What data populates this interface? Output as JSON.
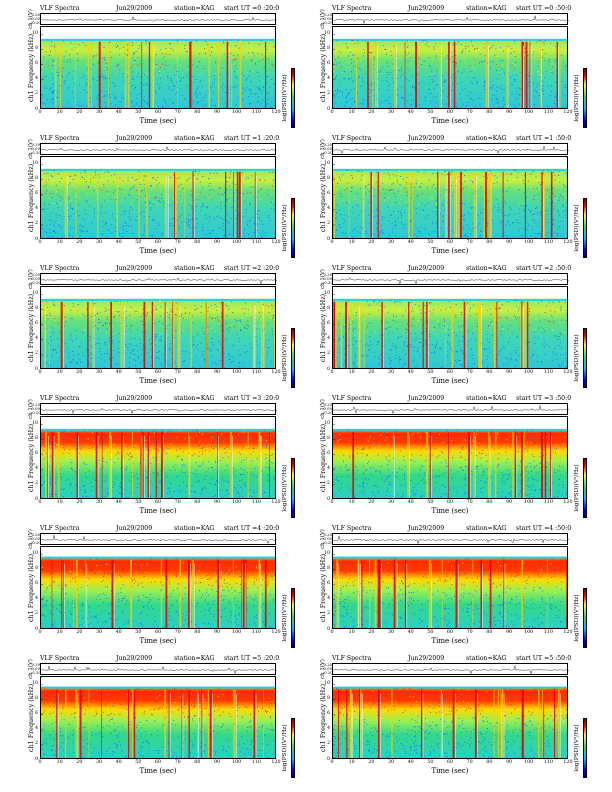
{
  "chart_data": [
    {
      "type": "heatmap",
      "title": "VLF Spectra",
      "date": "Jun29/2009",
      "station": "station=KAG",
      "start": "start  UT =0 :20:0",
      "channel_label": "ch 1(V)",
      "ylabel": "ch1 Frequency (kHz)",
      "xlabel": "Time (sec)",
      "colorbar_label": "log(PSD)(V²/Hz)",
      "x_ticks": [
        "0",
        "10",
        "20",
        "30",
        "40",
        "50",
        "60",
        "70",
        "80",
        "90",
        "100",
        "110",
        "120"
      ],
      "y_ticks": [
        "0",
        "2",
        "4",
        "6",
        "8",
        "10"
      ],
      "wave_ticks": [
        "0.20",
        "0.00",
        "-0.20"
      ],
      "xlim": [
        0,
        120
      ],
      "ylim": [
        0,
        11
      ],
      "band_top_khz": 9.3,
      "red_fraction": 0.25,
      "dense_top": false,
      "seed": 11
    },
    {
      "type": "heatmap",
      "title": "VLF Spectra",
      "date": "Jun29/2009",
      "station": "station=KAG",
      "start": "start  UT =0 :50:0",
      "channel_label": "ch 1(V)",
      "ylabel": "ch1 Frequency (kHz)",
      "xlabel": "Time (sec)",
      "colorbar_label": "log(PSD)(V²/Hz)",
      "x_ticks": [
        "0",
        "10",
        "20",
        "30",
        "40",
        "50",
        "60",
        "70",
        "80",
        "90",
        "100",
        "110",
        "120"
      ],
      "y_ticks": [
        "0",
        "2",
        "4",
        "6",
        "8",
        "10"
      ],
      "wave_ticks": [
        "0.20",
        "0.00",
        "-0.20"
      ],
      "xlim": [
        0,
        120
      ],
      "ylim": [
        0,
        11
      ],
      "band_top_khz": 9.3,
      "red_fraction": 0.25,
      "dense_top": false,
      "seed": 23
    },
    {
      "type": "heatmap",
      "title": "VLF Spectra",
      "date": "Jun29/2009",
      "station": "station=KAG",
      "start": "start  UT =1 :20:0",
      "channel_label": "ch 1(V)",
      "ylabel": "ch1 Frequency (kHz)",
      "xlabel": "Time (sec)",
      "colorbar_label": "log(PSD)(V²/Hz)",
      "x_ticks": [
        "0",
        "10",
        "20",
        "30",
        "40",
        "50",
        "60",
        "70",
        "80",
        "90",
        "100",
        "110",
        "120"
      ],
      "y_ticks": [
        "0",
        "2",
        "4",
        "6",
        "8",
        "10"
      ],
      "wave_ticks": [
        "0.20",
        "0.00",
        "-0.20"
      ],
      "xlim": [
        0,
        120
      ],
      "ylim": [
        0,
        11
      ],
      "band_top_khz": 9.3,
      "red_fraction": 0.2,
      "dense_top": false,
      "seed": 37
    },
    {
      "type": "heatmap",
      "title": "VLF Spectra",
      "date": "Jun29/2009",
      "station": "station=KAG",
      "start": "start  UT =1 :50:0",
      "channel_label": "ch 1(V)",
      "ylabel": "ch1 Frequency (kHz)",
      "xlabel": "Time (sec)",
      "colorbar_label": "log(PSD)(V²/Hz)",
      "x_ticks": [
        "0",
        "10",
        "20",
        "30",
        "40",
        "50",
        "60",
        "70",
        "80",
        "90",
        "100",
        "110",
        "120"
      ],
      "y_ticks": [
        "0",
        "2",
        "4",
        "6",
        "8",
        "10"
      ],
      "wave_ticks": [
        "0.20",
        "0.00",
        "-0.20"
      ],
      "xlim": [
        0,
        120
      ],
      "ylim": [
        0,
        11
      ],
      "band_top_khz": 9.3,
      "red_fraction": 0.2,
      "dense_top": false,
      "seed": 41
    },
    {
      "type": "heatmap",
      "title": "VLF Spectra",
      "date": "Jun29/2009",
      "station": "station=KAG",
      "start": "start  UT =2 :20:0",
      "channel_label": "ch 1(V)",
      "ylabel": "ch1 Frequency (kHz)",
      "xlabel": "Time (sec)",
      "colorbar_label": "log(PSD)(V²/Hz)",
      "x_ticks": [
        "0",
        "10",
        "20",
        "30",
        "40",
        "50",
        "60",
        "70",
        "80",
        "90",
        "100",
        "110",
        "120"
      ],
      "y_ticks": [
        "0",
        "2",
        "4",
        "6",
        "8",
        "10"
      ],
      "wave_ticks": [
        "0.20",
        "0.00",
        "-0.20"
      ],
      "xlim": [
        0,
        120
      ],
      "ylim": [
        0,
        11
      ],
      "band_top_khz": 9.3,
      "red_fraction": 0.2,
      "dense_top": false,
      "seed": 53
    },
    {
      "type": "heatmap",
      "title": "VLF Spectra",
      "date": "Jun29/2009",
      "station": "station=KAG",
      "start": "start  UT =2 :50:0",
      "channel_label": "ch 1(V)",
      "ylabel": "ch1 Frequency (kHz)",
      "xlabel": "Time (sec)",
      "colorbar_label": "log(PSD)(V²/Hz)",
      "x_ticks": [
        "0",
        "10",
        "20",
        "30",
        "40",
        "50",
        "60",
        "70",
        "80",
        "90",
        "100",
        "110",
        "120"
      ],
      "y_ticks": [
        "0",
        "2",
        "4",
        "6",
        "8",
        "10"
      ],
      "wave_ticks": [
        "0.20",
        "0.00",
        "-0.20"
      ],
      "xlim": [
        0,
        120
      ],
      "ylim": [
        0,
        11
      ],
      "band_top_khz": 9.3,
      "red_fraction": 0.2,
      "dense_top": false,
      "seed": 67
    },
    {
      "type": "heatmap",
      "title": "VLF Spectra",
      "date": "Jun29/2009",
      "station": "station=KAG",
      "start": "start  UT =3 :20:0",
      "channel_label": "ch 1(V)",
      "ylabel": "ch1 Frequency (kHz)",
      "xlabel": "Time (sec)",
      "colorbar_label": "log(PSD)(V²/Hz)",
      "x_ticks": [
        "0",
        "10",
        "20",
        "30",
        "40",
        "50",
        "60",
        "70",
        "80",
        "90",
        "100",
        "110",
        "120"
      ],
      "y_ticks": [
        "0",
        "2",
        "4",
        "6",
        "8",
        "10"
      ],
      "wave_ticks": [
        "0.20",
        "0.00",
        "-0.20"
      ],
      "xlim": [
        0,
        120
      ],
      "ylim": [
        0,
        11
      ],
      "band_top_khz": 9.3,
      "red_fraction": 0.35,
      "dense_top": true,
      "seed": 71
    },
    {
      "type": "heatmap",
      "title": "VLF Spectra",
      "date": "Jun29/2009",
      "station": "station=KAG",
      "start": "start  UT =3 :50:0",
      "channel_label": "ch 1(V)",
      "ylabel": "ch1 Frequency (kHz)",
      "xlabel": "Time (sec)",
      "colorbar_label": "log(PSD)(V²/Hz)",
      "x_ticks": [
        "0",
        "10",
        "20",
        "30",
        "40",
        "50",
        "60",
        "70",
        "80",
        "90",
        "100",
        "110",
        "120"
      ],
      "y_ticks": [
        "0",
        "2",
        "4",
        "6",
        "8",
        "10"
      ],
      "wave_ticks": [
        "0.20",
        "0.00",
        "-0.20"
      ],
      "xlim": [
        0,
        120
      ],
      "ylim": [
        0,
        11
      ],
      "band_top_khz": 9.3,
      "red_fraction": 0.4,
      "dense_top": true,
      "seed": 83
    },
    {
      "type": "heatmap",
      "title": "VLF Spectra",
      "date": "Jun29/2009",
      "station": "station=KAG",
      "start": "start  UT =4 :20:0",
      "channel_label": "ch 1(V)",
      "ylabel": "ch1 Frequency (kHz)",
      "xlabel": "Time (sec)",
      "colorbar_label": "log(PSD)(V²/Hz)",
      "x_ticks": [
        "0",
        "10",
        "20",
        "30",
        "40",
        "50",
        "60",
        "70",
        "80",
        "90",
        "100",
        "110",
        "120"
      ],
      "y_ticks": [
        "0",
        "2",
        "4",
        "6",
        "8",
        "10"
      ],
      "wave_ticks": [
        "0.20",
        "0.00",
        "-0.20"
      ],
      "xlim": [
        0,
        120
      ],
      "ylim": [
        0,
        11
      ],
      "band_top_khz": 9.6,
      "red_fraction": 0.55,
      "dense_top": true,
      "seed": 97
    },
    {
      "type": "heatmap",
      "title": "VLF Spectra",
      "date": "Jun29/2009",
      "station": "station=KAG",
      "start": "start  UT =4 :50:0",
      "channel_label": "ch 1(V)",
      "ylabel": "ch1 Frequency (kHz)",
      "xlabel": "Time (sec)",
      "colorbar_label": "log(PSD)(V²/Hz)",
      "x_ticks": [
        "0",
        "10",
        "20",
        "30",
        "40",
        "50",
        "60",
        "70",
        "80",
        "90",
        "100",
        "110",
        "120"
      ],
      "y_ticks": [
        "0",
        "2",
        "4",
        "6",
        "8",
        "10"
      ],
      "wave_ticks": [
        "0.20",
        "0.00",
        "-0.20"
      ],
      "xlim": [
        0,
        120
      ],
      "ylim": [
        0,
        11
      ],
      "band_top_khz": 9.6,
      "red_fraction": 0.65,
      "dense_top": true,
      "seed": 101
    },
    {
      "type": "heatmap",
      "title": "VLF Spectra",
      "date": "Jun29/2009",
      "station": "station=KAG",
      "start": "start  UT =5 :20:0",
      "channel_label": "ch 1(V)",
      "ylabel": "ch1 Frequency (kHz)",
      "xlabel": "Time (sec)",
      "colorbar_label": "log(PSD)(V²/Hz)",
      "x_ticks": [
        "0",
        "10",
        "20",
        "30",
        "40",
        "50",
        "60",
        "70",
        "80",
        "90",
        "100",
        "110",
        "120"
      ],
      "y_ticks": [
        "0",
        "2",
        "4",
        "6",
        "8",
        "10"
      ],
      "wave_ticks": [
        "0.20",
        "0.00",
        "-0.20"
      ],
      "xlim": [
        0,
        120
      ],
      "ylim": [
        0,
        11
      ],
      "band_top_khz": 9.6,
      "red_fraction": 0.7,
      "dense_top": true,
      "seed": 113
    },
    {
      "type": "heatmap",
      "title": "VLF Spectra",
      "date": "Jun29/2009",
      "station": "station=KAG",
      "start": "start  UT =5 :50:0",
      "channel_label": "ch 1(V)",
      "ylabel": "ch1 Frequency (kHz)",
      "xlabel": "Time (sec)",
      "colorbar_label": "log(PSD)(V²/Hz)",
      "x_ticks": [
        "0",
        "10",
        "20",
        "30",
        "40",
        "50",
        "60",
        "70",
        "80",
        "90",
        "100",
        "110",
        "120"
      ],
      "y_ticks": [
        "0",
        "2",
        "4",
        "6",
        "8",
        "10"
      ],
      "wave_ticks": [
        "0.20",
        "0.00",
        "-0.20"
      ],
      "xlim": [
        0,
        120
      ],
      "ylim": [
        0,
        11
      ],
      "band_top_khz": 9.6,
      "red_fraction": 0.7,
      "dense_top": true,
      "seed": 127
    }
  ]
}
